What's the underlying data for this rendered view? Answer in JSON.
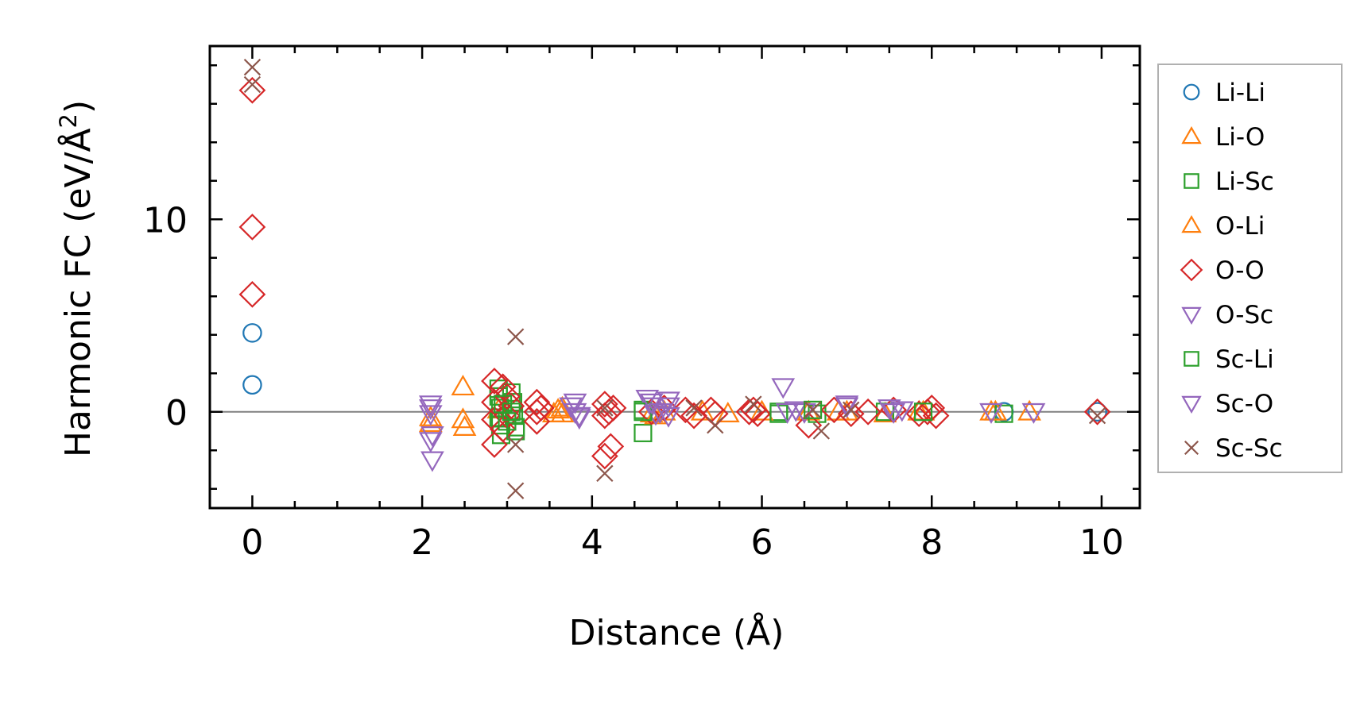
{
  "chart_data": {
    "type": "scatter",
    "xlabel": "Distance (Å)",
    "ylabel": "Harmonic FC (eV/Å²)",
    "ylabel_parts": [
      "Harmonic FC (eV/Å",
      "2",
      ")"
    ],
    "xlim": [
      -0.5,
      10.45
    ],
    "ylim": [
      -5,
      19
    ],
    "x_ticks": [
      0,
      2,
      4,
      6,
      8,
      10
    ],
    "x_tick_labels": [
      "0",
      "2",
      "4",
      "6",
      "8",
      "10"
    ],
    "y_ticks": [
      0,
      10
    ],
    "y_tick_labels": [
      "0",
      "10"
    ],
    "x_minor_step": 0.5,
    "y_minor_step": 2,
    "zero_line": true,
    "grid": false,
    "legend_position": "right-outside-top",
    "series": [
      {
        "name": "Li-Li",
        "marker": "circle",
        "color": "#1f77b4",
        "points": [
          [
            0,
            4.1
          ],
          [
            0,
            1.4
          ],
          [
            8.85,
            0.0
          ],
          [
            9.95,
            0.0
          ]
        ]
      },
      {
        "name": "Li-O",
        "marker": "triangle-up",
        "color": "#ff7f0e",
        "points": [
          [
            2.1,
            -0.3
          ],
          [
            2.1,
            -0.6
          ],
          [
            2.48,
            1.3
          ],
          [
            2.48,
            -0.4
          ],
          [
            2.5,
            -0.8
          ],
          [
            2.9,
            0.1
          ],
          [
            3.6,
            0.1
          ],
          [
            3.65,
            -0.1
          ],
          [
            4.7,
            -0.1
          ],
          [
            4.85,
            0.0
          ],
          [
            5.6,
            -0.1
          ],
          [
            6.55,
            0.0
          ],
          [
            6.9,
            0.0
          ],
          [
            7.45,
            -0.1
          ],
          [
            7.9,
            0.0
          ],
          [
            8.7,
            0.0
          ],
          [
            9.15,
            0.0
          ]
        ]
      },
      {
        "name": "Li-Sc",
        "marker": "square",
        "color": "#2ca02c",
        "points": [
          [
            2.9,
            1.2
          ],
          [
            2.9,
            0.8
          ],
          [
            2.92,
            0.2
          ],
          [
            2.9,
            -0.3
          ],
          [
            2.92,
            -0.7
          ],
          [
            2.93,
            -1.2
          ],
          [
            3.05,
            1.0
          ],
          [
            3.07,
            0.5
          ],
          [
            3.08,
            -0.2
          ],
          [
            3.1,
            -0.8
          ],
          [
            4.6,
            0.1
          ],
          [
            4.6,
            -1.1
          ],
          [
            6.2,
            0.0
          ],
          [
            6.65,
            -0.1
          ],
          [
            7.45,
            0.0
          ],
          [
            8.85,
            -0.1
          ]
        ]
      },
      {
        "name": "O-Li",
        "marker": "triangle-up",
        "color": "#ff7f0e",
        "points": [
          [
            3.55,
            -0.1
          ],
          [
            3.65,
            0.2
          ],
          [
            4.75,
            -0.2
          ],
          [
            5.3,
            0.0
          ],
          [
            6.0,
            0.0
          ],
          [
            7.0,
            0.0
          ],
          [
            7.85,
            0.0
          ],
          [
            8.75,
            0.0
          ]
        ]
      },
      {
        "name": "O-O",
        "marker": "diamond",
        "color": "#d62728",
        "points": [
          [
            0,
            16.7
          ],
          [
            0,
            9.6
          ],
          [
            0,
            6.1
          ],
          [
            2.85,
            1.6
          ],
          [
            2.85,
            0.5
          ],
          [
            2.85,
            -0.4
          ],
          [
            2.85,
            -1.7
          ],
          [
            2.95,
            1.3
          ],
          [
            2.95,
            -0.9
          ],
          [
            3.0,
            0.8
          ],
          [
            3.0,
            -0.2
          ],
          [
            3.05,
            0.3
          ],
          [
            3.35,
            0.5
          ],
          [
            3.35,
            0.0
          ],
          [
            3.35,
            -0.5
          ],
          [
            3.4,
            0.2
          ],
          [
            4.15,
            0.4
          ],
          [
            4.15,
            -0.2
          ],
          [
            4.15,
            -2.3
          ],
          [
            4.22,
            -1.8
          ],
          [
            4.2,
            0.0
          ],
          [
            4.25,
            0.2
          ],
          [
            4.7,
            0.0
          ],
          [
            4.85,
            0.2
          ],
          [
            5.1,
            0.1
          ],
          [
            5.2,
            -0.2
          ],
          [
            5.4,
            0.1
          ],
          [
            5.45,
            -0.1
          ],
          [
            5.85,
            0.0
          ],
          [
            5.9,
            0.1
          ],
          [
            5.95,
            -0.1
          ],
          [
            6.55,
            -0.7
          ],
          [
            6.85,
            0.1
          ],
          [
            7.05,
            -0.1
          ],
          [
            7.25,
            0.0
          ],
          [
            7.55,
            0.1
          ],
          [
            7.85,
            -0.1
          ],
          [
            7.95,
            0.0
          ],
          [
            8.0,
            0.2
          ],
          [
            8.05,
            -0.2
          ],
          [
            9.95,
            0.0
          ]
        ]
      },
      {
        "name": "O-Sc",
        "marker": "triangle-down",
        "color": "#9467bd",
        "points": [
          [
            2.1,
            0.4
          ],
          [
            2.1,
            -0.1
          ],
          [
            2.1,
            -1.5
          ],
          [
            2.12,
            -2.5
          ],
          [
            3.8,
            0.5
          ],
          [
            3.8,
            0.0
          ],
          [
            3.85,
            -0.3
          ],
          [
            4.65,
            0.7
          ],
          [
            4.7,
            0.3
          ],
          [
            4.75,
            -0.1
          ],
          [
            4.9,
            0.6
          ],
          [
            4.9,
            -0.2
          ],
          [
            6.25,
            1.3
          ],
          [
            6.4,
            0.1
          ],
          [
            6.5,
            0.0
          ],
          [
            7.0,
            0.3
          ],
          [
            7.5,
            0.2
          ],
          [
            7.65,
            0.1
          ],
          [
            8.7,
            0.0
          ],
          [
            9.2,
            0.0
          ]
        ]
      },
      {
        "name": "Sc-Li",
        "marker": "square",
        "color": "#2ca02c",
        "points": [
          [
            2.95,
            0.4
          ],
          [
            3.0,
            -0.5
          ],
          [
            3.05,
            0.0
          ],
          [
            3.1,
            -1.0
          ],
          [
            4.6,
            0.0
          ],
          [
            6.2,
            -0.1
          ],
          [
            6.6,
            0.1
          ],
          [
            7.9,
            0.0
          ]
        ]
      },
      {
        "name": "Sc-O",
        "marker": "triangle-down",
        "color": "#9467bd",
        "points": [
          [
            2.1,
            0.2
          ],
          [
            2.12,
            -1.2
          ],
          [
            3.75,
            0.3
          ],
          [
            3.85,
            -0.2
          ],
          [
            4.7,
            0.5
          ],
          [
            4.8,
            0.0
          ],
          [
            4.9,
            0.3
          ],
          [
            6.3,
            0.0
          ],
          [
            7.0,
            0.4
          ],
          [
            7.55,
            0.0
          ]
        ]
      },
      {
        "name": "Sc-Sc",
        "marker": "x",
        "color": "#8c564b",
        "points": [
          [
            0,
            17.9
          ],
          [
            0,
            17.0
          ],
          [
            3.1,
            3.9
          ],
          [
            3.1,
            -4.1
          ],
          [
            3.1,
            -1.7
          ],
          [
            4.15,
            -3.2
          ],
          [
            4.15,
            0.2
          ],
          [
            5.2,
            0.2
          ],
          [
            5.45,
            -0.7
          ],
          [
            5.9,
            0.4
          ],
          [
            6.6,
            0.1
          ],
          [
            6.7,
            -1.0
          ],
          [
            7.05,
            0.1
          ],
          [
            9.95,
            -0.2
          ]
        ]
      }
    ]
  },
  "legend": {
    "items": [
      {
        "label": "Li-Li",
        "marker": "circle",
        "color": "#1f77b4"
      },
      {
        "label": "Li-O",
        "marker": "triangle-up",
        "color": "#ff7f0e"
      },
      {
        "label": "Li-Sc",
        "marker": "square",
        "color": "#2ca02c"
      },
      {
        "label": "O-Li",
        "marker": "triangle-up",
        "color": "#ff7f0e"
      },
      {
        "label": "O-O",
        "marker": "diamond",
        "color": "#d62728"
      },
      {
        "label": "O-Sc",
        "marker": "triangle-down",
        "color": "#9467bd"
      },
      {
        "label": "Sc-Li",
        "marker": "square",
        "color": "#2ca02c"
      },
      {
        "label": "Sc-O",
        "marker": "triangle-down",
        "color": "#9467bd"
      },
      {
        "label": "Sc-Sc",
        "marker": "x",
        "color": "#8c564b"
      }
    ]
  }
}
